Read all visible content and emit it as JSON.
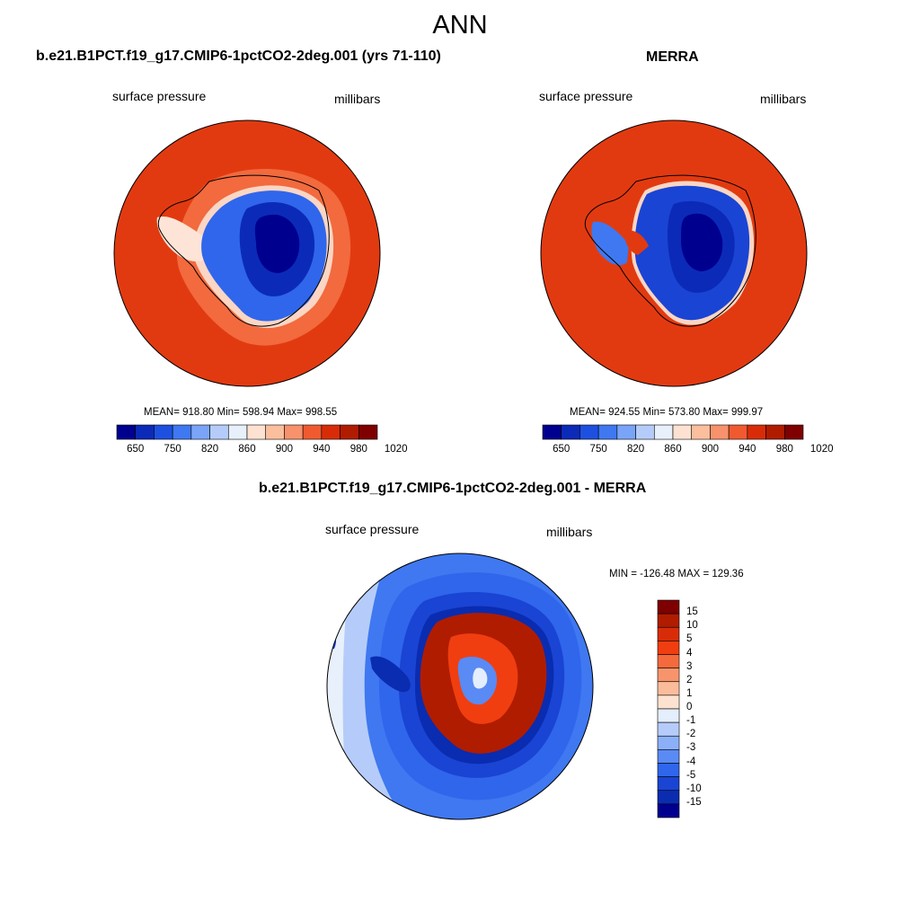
{
  "title": "ANN",
  "panels": [
    {
      "title": "b.e21.B1PCT.f19_g17.CMIP6-1pctCO2-2deg.001 (yrs 71-110)",
      "left_label": "surface pressure",
      "right_label": "millibars",
      "stats": "MEAN= 918.80  Min= 598.94  Max= 998.55"
    },
    {
      "title": "MERRA",
      "left_label": "surface pressure",
      "right_label": "millibars",
      "stats": "MEAN= 924.55  Min= 573.80  Max= 999.97"
    },
    {
      "title": "b.e21.B1PCT.f19_g17.CMIP6-1pctCO2-2deg.001 - MERRA",
      "left_label": "surface pressure",
      "right_label": "millibars",
      "stats": "MIN = -126.48 MAX = 129.36"
    }
  ],
  "colorbar_main": {
    "ticks": [
      "650",
      "750",
      "820",
      "860",
      "900",
      "940",
      "980",
      "1020"
    ],
    "colors": [
      "#00008f",
      "#0c2ab8",
      "#1e50e0",
      "#3f78f0",
      "#7aa4f8",
      "#b5ccfa",
      "#e8f0fb",
      "#fde2d2",
      "#fbbf9e",
      "#f7926c",
      "#f05a30",
      "#d82c08",
      "#b01c00",
      "#7f0000"
    ]
  },
  "colorbar_diff": {
    "ticks": [
      "15",
      "10",
      "5",
      "4",
      "3",
      "2",
      "1",
      "0",
      "-1",
      "-2",
      "-3",
      "-4",
      "-5",
      "-10",
      "-15"
    ],
    "colors": [
      "#7f0000",
      "#b01c00",
      "#d82c08",
      "#f03e10",
      "#f56a3c",
      "#f8946c",
      "#fbbc9c",
      "#fde2d0",
      "#e4eefc",
      "#b5ccfa",
      "#8cb0f8",
      "#5a8af4",
      "#2f66ec",
      "#1a44d4",
      "#0a2cb0",
      "#00008f"
    ]
  }
}
